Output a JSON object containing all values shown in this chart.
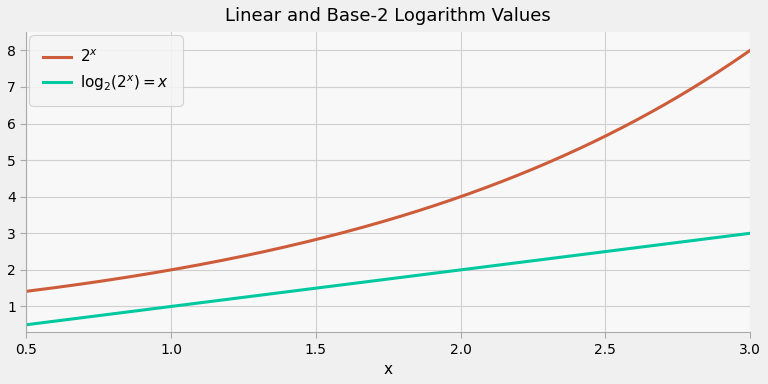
{
  "title": "Linear and Base-2 Logarithm Values",
  "xlabel": "x",
  "x_start": 0.5,
  "x_end": 3.0,
  "ylim": [
    0.3,
    8.5
  ],
  "yticks": [
    1,
    2,
    3,
    4,
    5,
    6,
    7,
    8
  ],
  "xticks": [
    0.5,
    1.0,
    1.5,
    2.0,
    2.5,
    3.0
  ],
  "line1_color": "#cd5c3a",
  "line2_color": "#00c9a0",
  "line1_label": "$2^x$",
  "line2_label": "$\\mathrm{log}_2(2^x) = x$",
  "line_width": 2.2,
  "fig_bg": "#f0f0f0",
  "axes_bg": "#f8f8f8",
  "grid_color": "#d0d0d0",
  "spine_color": "#aaaaaa",
  "title_fontsize": 13,
  "tick_fontsize": 10,
  "legend_fontsize": 11
}
